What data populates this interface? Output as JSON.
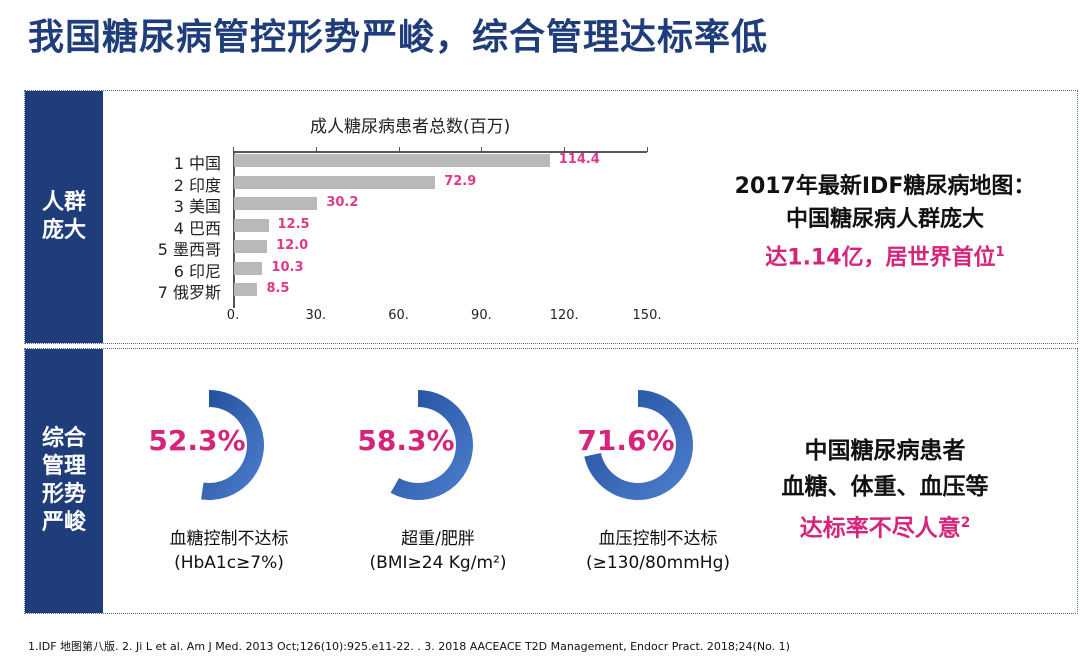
{
  "title": "我国糖尿病管控形势严峻，综合管理达标率低",
  "top_panel": {
    "side_label": "人群庞大"
  },
  "bottom_panel": {
    "side_label": "综合管理形势严峻"
  },
  "chart_data": {
    "type": "bar",
    "orientation": "horizontal",
    "title": "成人糖尿病患者总数(百万)",
    "categories": [
      "1 中国",
      "2 印度",
      "3 美国",
      "4 巴西",
      "5 墨西哥",
      "6 印尼",
      "7 俄罗斯"
    ],
    "values": [
      114.4,
      72.9,
      30.2,
      12.5,
      12.0,
      10.3,
      8.5
    ],
    "value_labels": [
      "114.4",
      "72.9",
      "30.2",
      "12.5",
      "12.0",
      "10.3",
      "8.5"
    ],
    "xlim": [
      0,
      150
    ],
    "xticks": [
      "0.",
      "30.",
      "60.",
      "90.",
      "120.",
      "150."
    ],
    "xtick_values": [
      0,
      30,
      60,
      90,
      120,
      150
    ],
    "bar_color": "#b9b9b9",
    "label_color": "#e0388a"
  },
  "callout_top": {
    "line1": "2017年最新IDF糖尿病地图：",
    "line2": "中国糖尿病人群庞大",
    "line3": "达1.14亿，居世界首位",
    "sup": "1"
  },
  "donuts": [
    {
      "percent": 52.3,
      "label": "52.3%",
      "caption1": "血糖控制不达标",
      "caption2": "(HbA1c≥7%)"
    },
    {
      "percent": 58.3,
      "label": "58.3%",
      "caption1": "超重/肥胖",
      "caption2": "(BMI≥24 Kg/m²)"
    },
    {
      "percent": 71.6,
      "label": "71.6%",
      "caption1": "血压控制不达标",
      "caption2": "(≥130/80mmHg)"
    }
  ],
  "callout_bottom": {
    "line1": "中国糖尿病患者",
    "line2": "血糖、体重、血压等",
    "line3": "达标率不尽人意",
    "sup": "2"
  },
  "footer": "1.IDF 地图第八版. 2. Ji L et al. Am J Med. 2013 Oct;126(10):925.e11-22. . 3. 2018 AACEACE T2D Management, Endocr Pract. 2018;24(No. 1)",
  "colors": {
    "navy": "#1f3d7a",
    "pink": "#d6247b",
    "donut_dark": "#1f4e9a",
    "donut_light": "#4f7fd0"
  }
}
